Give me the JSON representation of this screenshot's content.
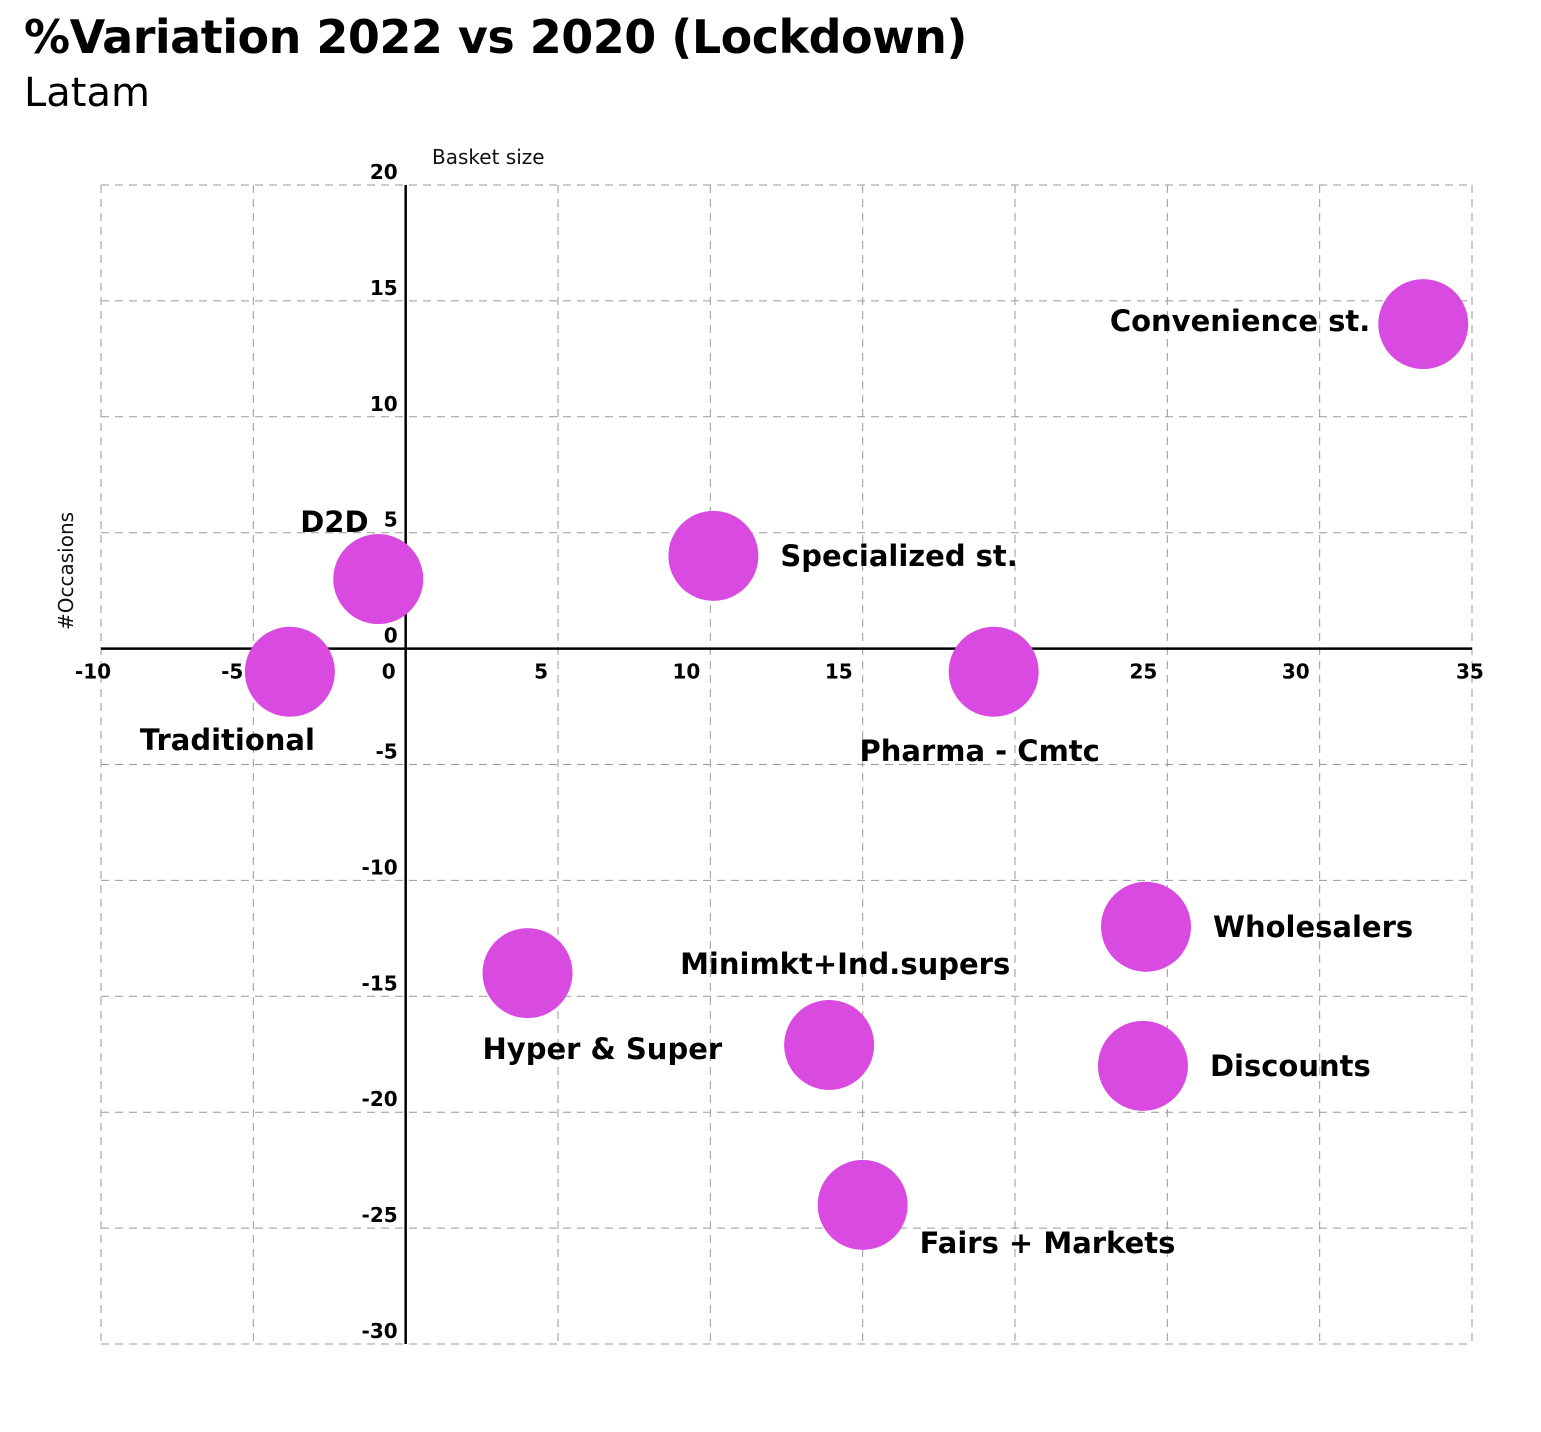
{
  "title": "%Variation 2022 vs 2020 (Lockdown)",
  "subtitle": "Latam",
  "chart_data": {
    "type": "scatter",
    "title": "%Variation 2022 vs 2020 (Lockdown)",
    "subtitle": "Latam",
    "xlabel": "Basket size",
    "ylabel": "#Occasions",
    "xlim": [
      -10,
      35
    ],
    "ylim": [
      -30,
      20
    ],
    "x_ticks": [
      "-10",
      "-5",
      "0",
      "5",
      "10",
      "15",
      "20",
      "25",
      "30",
      "35"
    ],
    "y_ticks": [
      "20",
      "15",
      "10",
      "5",
      "0",
      "-5",
      "-10",
      "-15",
      "-20",
      "-25",
      "-30"
    ],
    "grid": true,
    "marker_color": "#D94BE0",
    "points": [
      {
        "label": "Convenience st.",
        "x": 33.4,
        "y": 14.0,
        "label_pos": "left"
      },
      {
        "label": "Specialized st.",
        "x": 10.1,
        "y": 4.0,
        "label_pos": "right"
      },
      {
        "label": "D2D",
        "x": -0.9,
        "y": 3.0,
        "label_pos": "top-left"
      },
      {
        "label": "Traditional",
        "x": -3.8,
        "y": -1.0,
        "label_pos": "bottom-left"
      },
      {
        "label": "Pharma - Cmtc",
        "x": 19.3,
        "y": -1.0,
        "label_pos": "bottom"
      },
      {
        "label": "Wholesalers",
        "x": 24.3,
        "y": -12.0,
        "label_pos": "right"
      },
      {
        "label": "Hyper & Super",
        "x": 4.0,
        "y": -14.0,
        "label_pos": "bottom-right"
      },
      {
        "label": "Minimkt+Ind.supers",
        "x": 13.9,
        "y": -17.1,
        "label_pos": "top"
      },
      {
        "label": "Discounts",
        "x": 24.2,
        "y": -18.0,
        "label_pos": "right"
      },
      {
        "label": "Fairs + Markets",
        "x": 15.0,
        "y": -24.0,
        "label_pos": "bottom-right"
      }
    ]
  }
}
